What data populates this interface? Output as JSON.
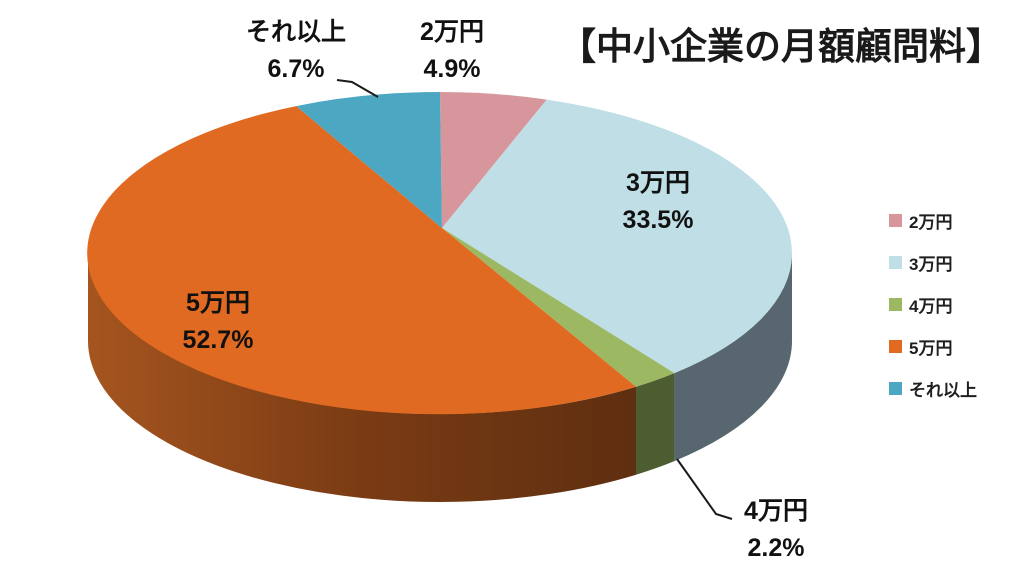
{
  "title": "【中小企業の月額顧問料】",
  "chart_data": {
    "type": "pie",
    "style": "3d",
    "title": "【中小企業の月額顧問料】",
    "categories": [
      "2万円",
      "3万円",
      "4万円",
      "5万円",
      "それ以上"
    ],
    "values": [
      4.9,
      33.5,
      2.2,
      52.7,
      6.7
    ],
    "value_suffix": "%",
    "start_angle_deg": 0,
    "direction": "clockwise",
    "legend_position": "right",
    "background": "#FFFFFF",
    "label_color": "#111111",
    "colors": [
      "#D7969B",
      "#BFDEE6",
      "#9CB862",
      "#E06A21",
      "#4CA7C3"
    ],
    "side_colors": [
      "#8A5A5E",
      "#57666F",
      "#4E5C32",
      "#7A3B14",
      "#2F6A7D"
    ],
    "side_gradient_5man": [
      "#A5551F",
      "#7A3B14",
      "#5E2F10"
    ]
  },
  "legend": {
    "items": [
      {
        "label": "2万円",
        "color": "#D7969B"
      },
      {
        "label": "3万円",
        "color": "#BFDEE6"
      },
      {
        "label": "4万円",
        "color": "#9CB862"
      },
      {
        "label": "5万円",
        "color": "#E06A21"
      },
      {
        "label": "それ以上",
        "color": "#4CA7C3"
      }
    ]
  }
}
